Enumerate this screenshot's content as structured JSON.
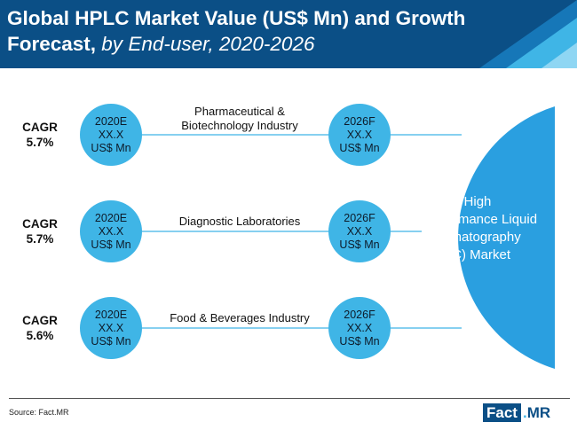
{
  "title": {
    "main": "Global HPLC Market Value (US$ Mn) and Growth",
    "line2_bold": "Forecast,",
    "line2_italic": " by End-user, 2020-2026"
  },
  "segments": [
    {
      "label_line1": "Pharmaceutical &",
      "label_line2": "Biotechnology Industry",
      "cagr_label": "CAGR",
      "cagr_value": "5.7%",
      "start": {
        "year": "2020E",
        "value": "XX.X",
        "unit": "US$ Mn"
      },
      "end": {
        "year": "2026F",
        "value": "XX.X",
        "unit": "US$ Mn"
      }
    },
    {
      "label_line1": "Diagnostic Laboratories",
      "label_line2": "",
      "cagr_label": "CAGR",
      "cagr_value": "5.7%",
      "start": {
        "year": "2020E",
        "value": "XX.X",
        "unit": "US$ Mn"
      },
      "end": {
        "year": "2026F",
        "value": "XX.X",
        "unit": "US$ Mn"
      }
    },
    {
      "label_line1": "Food & Beverages Industry",
      "label_line2": "",
      "cagr_label": "CAGR",
      "cagr_value": "5.6%",
      "start": {
        "year": "2020E",
        "value": "XX.X",
        "unit": "US$ Mn"
      },
      "end": {
        "year": "2026F",
        "value": "XX.X",
        "unit": "US$ Mn"
      }
    }
  ],
  "market": {
    "line1": "Global High",
    "line2": "Performance Liquid",
    "line3": "Chromatography",
    "line4": "(HPLC) Market"
  },
  "footer": {
    "source": "Source: Fact.MR",
    "logo_fact": "Fact",
    "logo_dot": ".",
    "logo_mr": "MR"
  },
  "colors": {
    "header": "#0b4f86",
    "accent": "#3fb5e6",
    "market_circle": "#2a9fe0"
  }
}
